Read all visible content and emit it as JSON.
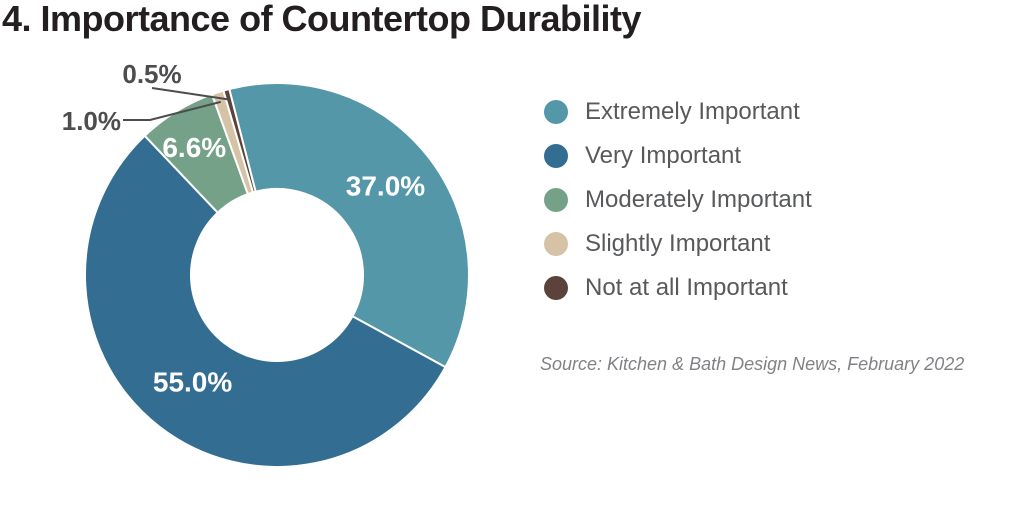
{
  "chart_data": {
    "type": "pie",
    "donut": true,
    "title": "4. Importance of Countertop Durability",
    "series": [
      {
        "name": "Extremely Important",
        "value": 37.0,
        "label": "37.0%",
        "color": "#5497a8"
      },
      {
        "name": "Very Important",
        "value": 55.0,
        "label": "55.0%",
        "color": "#336d92"
      },
      {
        "name": "Moderately Important",
        "value": 6.6,
        "label": "6.6%",
        "color": "#75a189"
      },
      {
        "name": "Slightly Important",
        "value": 1.0,
        "label": "1.0%",
        "color": "#d6c3a7"
      },
      {
        "name": "Not at all Important",
        "value": 0.5,
        "label": "0.5%",
        "color": "#5b433b"
      }
    ],
    "legend": "right",
    "source": "Source: Kitchen & Bath Design News, February 2022"
  }
}
